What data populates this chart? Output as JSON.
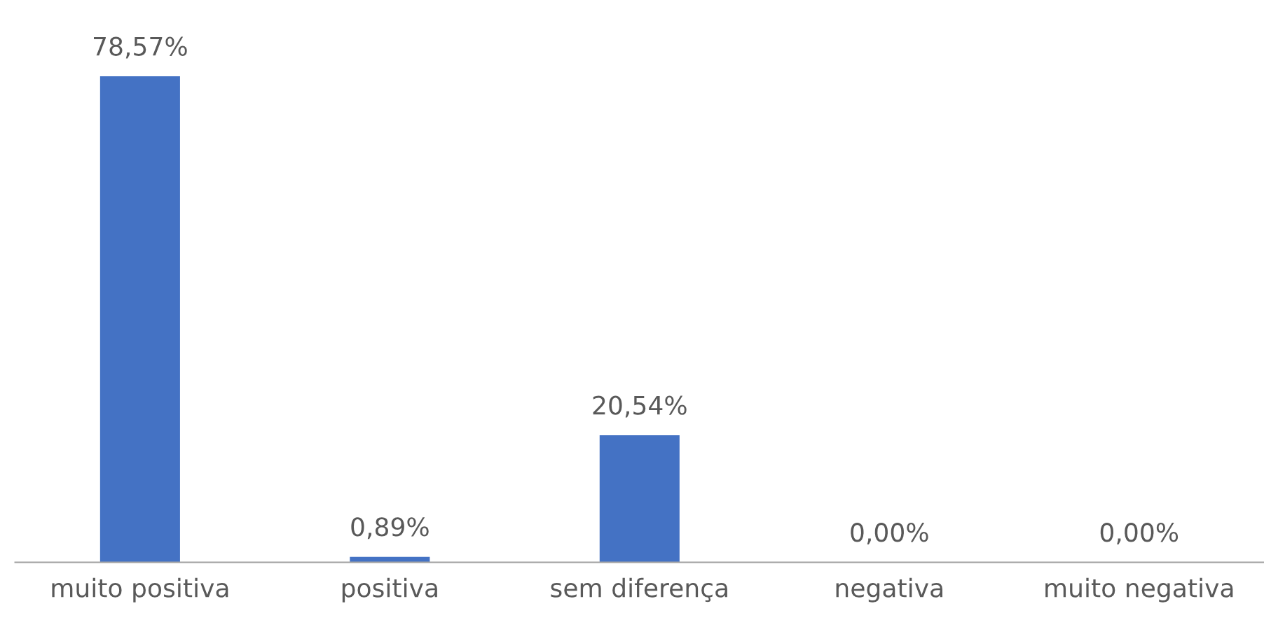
{
  "chart_data": {
    "type": "bar",
    "categories": [
      "muito positiva",
      "positiva",
      "sem diferença",
      "negativa",
      "muito negativa"
    ],
    "values": [
      78.57,
      0.89,
      20.54,
      0.0,
      0.0
    ],
    "value_labels": [
      "78,57%",
      "0,89%",
      "20,54%",
      "0,00%",
      "0,00%"
    ],
    "color": "#4472c4",
    "grid": false
  }
}
